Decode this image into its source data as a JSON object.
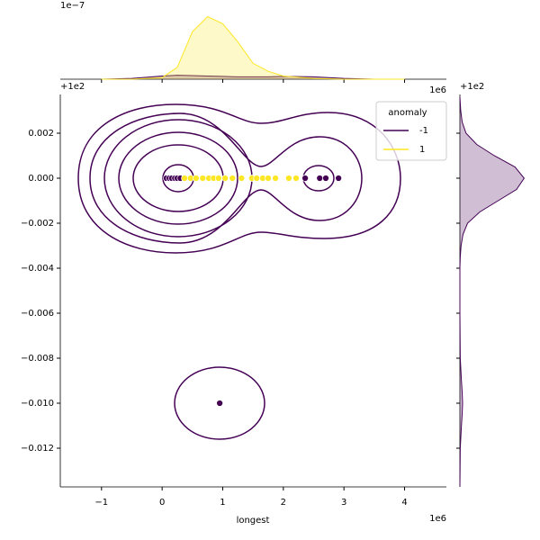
{
  "chart_data": [
    {
      "type": "scatter",
      "x_label": "longest",
      "x_offset_text": "1e6",
      "y_offset_text": "+1e2",
      "legend_title": "anomaly",
      "legend": "upper right",
      "xlim": [
        -1.68,
        4.69
      ],
      "xticks": [
        {
          "value": -1,
          "label": "−1"
        },
        0,
        1,
        2,
        3,
        4
      ],
      "ylim": [
        -0.01372,
        0.00372
      ],
      "yticks": [
        {
          "value": 0.002,
          "label": "0.002"
        },
        {
          "value": 0,
          "label": "0.000"
        },
        {
          "value": -0.002,
          "label": "−0.002"
        },
        {
          "value": -0.004,
          "label": "−0.004"
        },
        {
          "value": -0.006,
          "label": "−0.006"
        },
        {
          "value": -0.008,
          "label": "−0.008"
        },
        {
          "value": -0.01,
          "label": "−0.010"
        },
        {
          "value": -0.012,
          "label": "−0.012"
        }
      ],
      "series": [
        {
          "name": "-1",
          "color": "#440154",
          "x": [
            0.07,
            0.12,
            0.16,
            0.21,
            0.25,
            0.3,
            2.36,
            2.6,
            2.7,
            2.91,
            0.95
          ],
          "values": [
            0,
            0,
            0,
            0,
            0,
            0,
            0,
            0,
            0,
            0,
            -0.01
          ]
        },
        {
          "name": "1",
          "color": "#fde725",
          "x": [
            0.37,
            0.47,
            0.56,
            0.67,
            0.77,
            0.85,
            0.93,
            1.04,
            1.16,
            1.31,
            1.48,
            1.56,
            1.66,
            1.75,
            1.87,
            2.09,
            2.21
          ],
          "values": [
            0,
            0,
            0,
            0,
            0,
            0,
            0,
            0,
            0,
            0,
            0,
            0,
            0,
            0,
            0,
            0,
            0
          ]
        }
      ]
    },
    {
      "type": "area",
      "x_offset_text": "1e6",
      "y_offset_text": "1e−7",
      "xlim": [
        -1.68,
        4.69
      ],
      "ylim": [
        0,
        1
      ],
      "x": [
        -1,
        -0.5,
        0,
        0.25,
        0.5,
        0.75,
        1,
        1.25,
        1.5,
        1.75,
        2,
        2.5,
        3,
        3.5,
        4
      ],
      "series": [
        {
          "name": "-1",
          "color": "#440154",
          "values": [
            0,
            0.01,
            0.04,
            0.05,
            0.045,
            0.04,
            0.035,
            0.03,
            0.03,
            0.03,
            0.035,
            0.03,
            0.01,
            0,
            0
          ]
        },
        {
          "name": "1",
          "color": "#fde725",
          "values": [
            0,
            0,
            0.02,
            0.15,
            0.6,
            0.79,
            0.7,
            0.47,
            0.2,
            0.1,
            0.04,
            0.01,
            0,
            0,
            0
          ]
        }
      ]
    },
    {
      "type": "area",
      "orientation": "horizontal",
      "y_offset_text": "+1e2",
      "xlim": [
        0,
        1
      ],
      "ylim": [
        -0.01372,
        0.00372
      ],
      "x": [
        0.0036,
        0.003,
        0.0025,
        0.002,
        0.0015,
        0.001,
        0.0005,
        0,
        -0.0005,
        -0.001,
        -0.0015,
        -0.002,
        -0.0025,
        -0.003,
        -0.0035,
        -0.004,
        -0.006,
        -0.008,
        -0.009,
        -0.0095,
        -0.01,
        -0.0105,
        -0.011,
        -0.012,
        -0.0137
      ],
      "series": [
        {
          "name": "-1",
          "color": "#440154",
          "values": [
            0,
            0.01,
            0.03,
            0.08,
            0.22,
            0.45,
            0.72,
            0.84,
            0.74,
            0.5,
            0.26,
            0.1,
            0.04,
            0.015,
            0.005,
            0,
            0,
            0.005,
            0.02,
            0.03,
            0.035,
            0.03,
            0.02,
            0.005,
            0
          ]
        }
      ]
    }
  ]
}
